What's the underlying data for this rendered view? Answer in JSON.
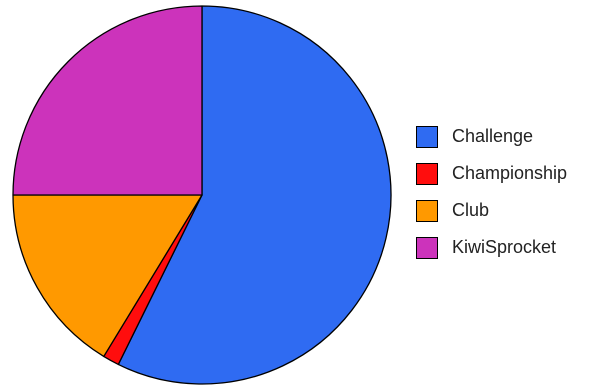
{
  "chart_data": {
    "type": "pie",
    "title": "",
    "slices": [
      {
        "label": "Challenge",
        "value": 57.3,
        "color": "#2f6bf2"
      },
      {
        "label": "Championship",
        "value": 1.4,
        "color": "#ff0d0d"
      },
      {
        "label": "Club",
        "value": 16.3,
        "color": "#ff9900"
      },
      {
        "label": "KiwiSprocket",
        "value": 25.0,
        "color": "#cc33bb"
      }
    ],
    "start_angle_deg": 0,
    "direction": "clockwise",
    "legend_position": "right"
  }
}
